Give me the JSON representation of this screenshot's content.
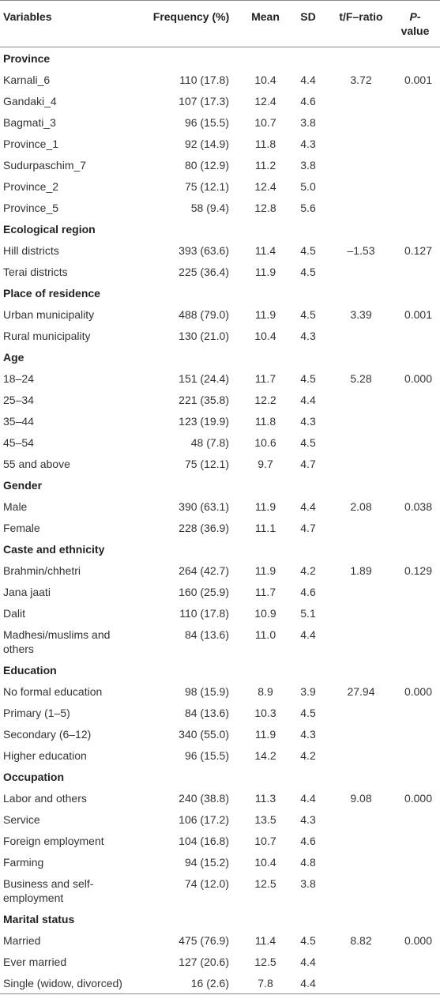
{
  "table": {
    "header": [
      "Variables",
      "Frequency (%)",
      "Mean",
      "SD",
      "t/F–ratio",
      [
        "P",
        "-value"
      ]
    ],
    "sections": [
      {
        "title": "Province",
        "stat": "3.72",
        "p": "0.001",
        "rows": [
          [
            "Karnali_6",
            "110 (17.8)",
            "10.4",
            "4.4"
          ],
          [
            "Gandaki_4",
            "107 (17.3)",
            "12.4",
            "4.6"
          ],
          [
            "Bagmati_3",
            "96 (15.5)",
            "10.7",
            "3.8"
          ],
          [
            "Province_1",
            "92 (14.9)",
            "11.8",
            "4.3"
          ],
          [
            "Sudurpaschim_7",
            "80 (12.9)",
            "11.2",
            "3.8"
          ],
          [
            "Province_2",
            "75 (12.1)",
            "12.4",
            "5.0"
          ],
          [
            "Province_5",
            "58 (9.4)",
            "12.8",
            "5.6"
          ]
        ]
      },
      {
        "title": "Ecological region",
        "stat": "–1.53",
        "p": "0.127",
        "rows": [
          [
            "Hill districts",
            "393 (63.6)",
            "11.4",
            "4.5"
          ],
          [
            "Terai districts",
            "225 (36.4)",
            "11.9",
            "4.5"
          ]
        ]
      },
      {
        "title": "Place of residence",
        "stat": "3.39",
        "p": "0.001",
        "rows": [
          [
            "Urban municipality",
            "488 (79.0)",
            "11.9",
            "4.5"
          ],
          [
            "Rural municipality",
            "130 (21.0)",
            "10.4",
            "4.3"
          ]
        ]
      },
      {
        "title": "Age",
        "stat": "5.28",
        "p": "0.000",
        "rows": [
          [
            "18–24",
            "151 (24.4)",
            "11.7",
            "4.5"
          ],
          [
            "25–34",
            "221 (35.8)",
            "12.2",
            "4.4"
          ],
          [
            "35–44",
            "123 (19.9)",
            "11.8",
            "4.3"
          ],
          [
            "45–54",
            "48 (7.8)",
            "10.6",
            "4.5"
          ],
          [
            "55 and above",
            "75 (12.1)",
            "9.7",
            "4.7"
          ]
        ]
      },
      {
        "title": "Gender",
        "stat": "2.08",
        "p": "0.038",
        "rows": [
          [
            "Male",
            "390 (63.1)",
            "11.9",
            "4.4"
          ],
          [
            "Female",
            "228 (36.9)",
            "11.1",
            "4.7"
          ]
        ]
      },
      {
        "title": "Caste and ethnicity",
        "stat": "1.89",
        "p": "0.129",
        "rows": [
          [
            "Brahmin/chhetri",
            "264 (42.7)",
            "11.9",
            "4.2"
          ],
          [
            "Jana jaati",
            "160 (25.9)",
            "11.7",
            "4.6"
          ],
          [
            "Dalit",
            "110 (17.8)",
            "10.9",
            "5.1"
          ],
          [
            "Madhesi/muslims and others",
            "84 (13.6)",
            "11.0",
            "4.4"
          ]
        ]
      },
      {
        "title": "Education",
        "stat": "27.94",
        "p": "0.000",
        "rows": [
          [
            "No formal education",
            "98 (15.9)",
            "8.9",
            "3.9"
          ],
          [
            "Primary (1–5)",
            "84 (13.6)",
            "10.3",
            "4.5"
          ],
          [
            "Secondary (6–12)",
            "340 (55.0)",
            "11.9",
            "4.3"
          ],
          [
            "Higher education",
            "96 (15.5)",
            "14.2",
            "4.2"
          ]
        ]
      },
      {
        "title": "Occupation",
        "stat": "9.08",
        "p": "0.000",
        "rows": [
          [
            "Labor and others",
            "240 (38.8)",
            "11.3",
            "4.4"
          ],
          [
            "Service",
            "106 (17.2)",
            "13.5",
            "4.3"
          ],
          [
            "Foreign employment",
            "104 (16.8)",
            "10.7",
            "4.6"
          ],
          [
            "Farming",
            "94 (15.2)",
            "10.4",
            "4.8"
          ],
          [
            "Business and self-employment",
            "74 (12.0)",
            "12.5",
            "3.8"
          ]
        ]
      },
      {
        "title": "Marital status",
        "stat": "8.82",
        "p": "0.000",
        "rows": [
          [
            "Married",
            "475 (76.9)",
            "11.4",
            "4.5"
          ],
          [
            "Ever married",
            "127 (20.6)",
            "12.5",
            "4.4"
          ],
          [
            "Single (widow, divorced)",
            "16 (2.6)",
            "7.8",
            "4.4"
          ]
        ]
      }
    ]
  }
}
